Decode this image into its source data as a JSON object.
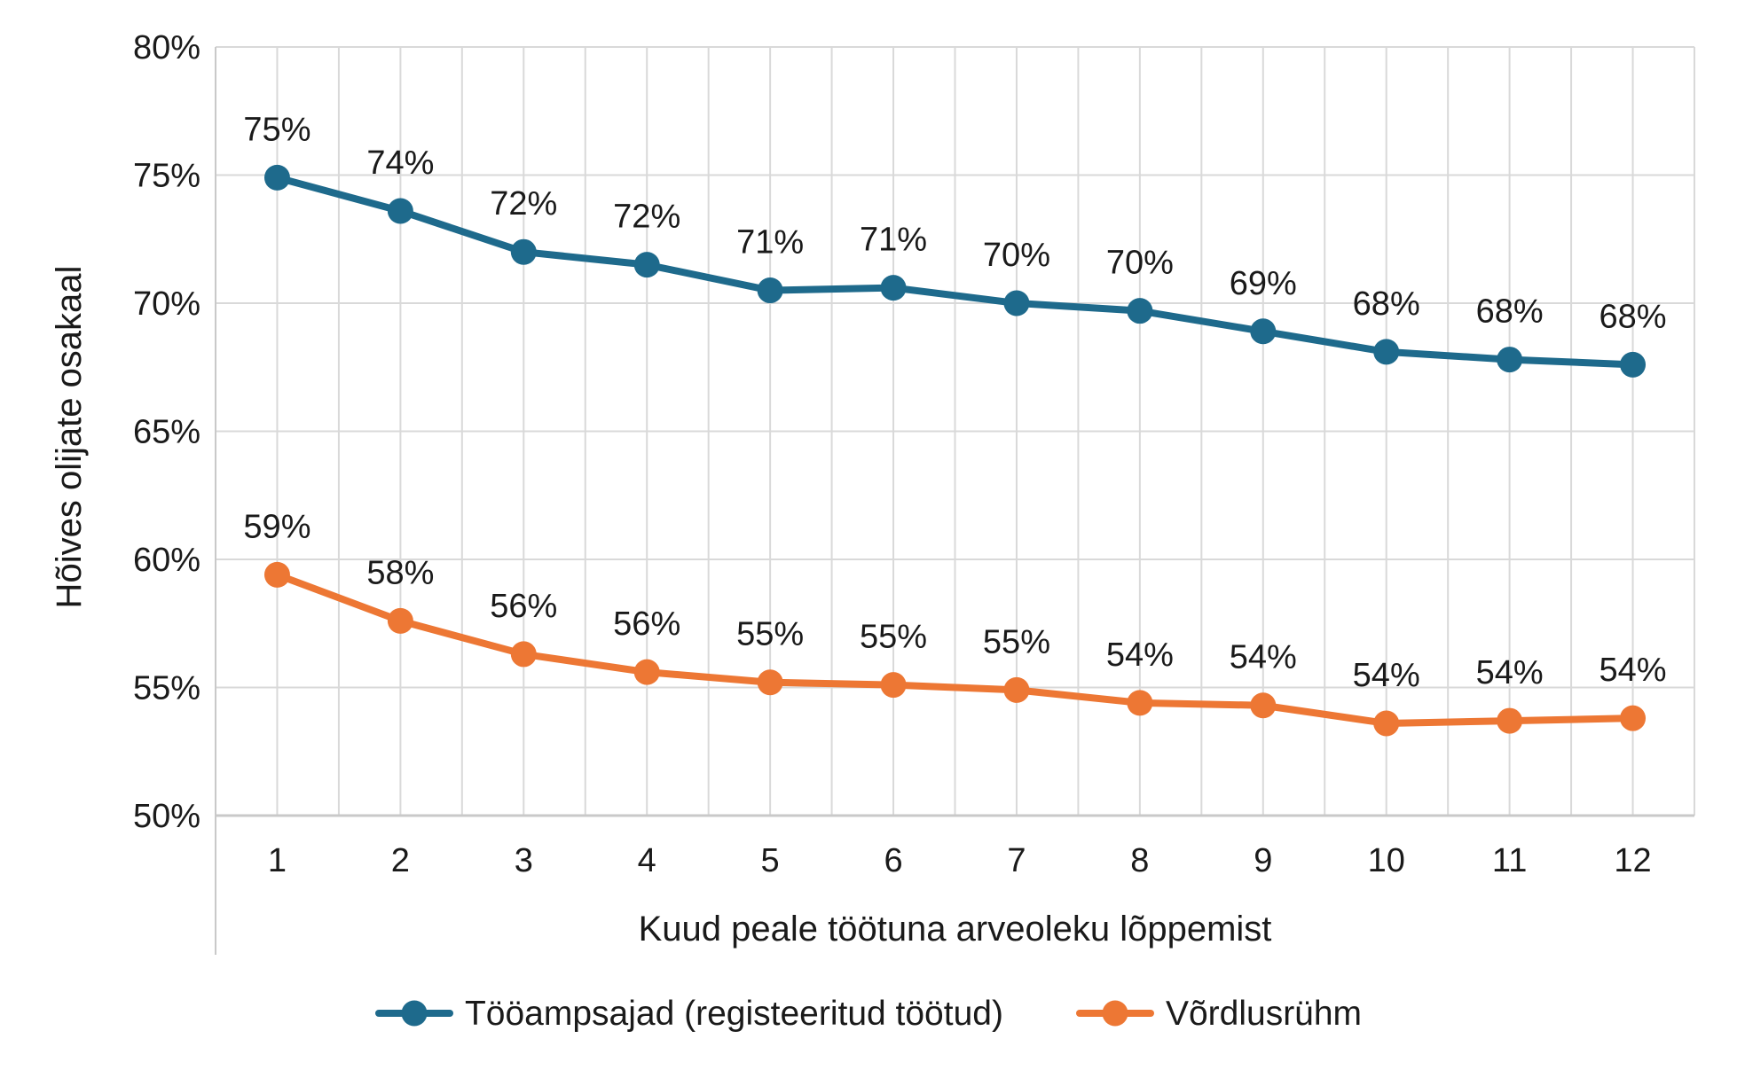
{
  "chart_data": {
    "type": "line",
    "title": "",
    "xlabel": "Kuud peale töötuna arveoleku lõppemist",
    "ylabel": "Hõives olijate osakaal",
    "x": [
      1,
      2,
      3,
      4,
      5,
      6,
      7,
      8,
      9,
      10,
      11,
      12
    ],
    "ylim": [
      50,
      80
    ],
    "ytick_step": 5,
    "yticks": [
      "80%",
      "75%",
      "70%",
      "65%",
      "60%",
      "55%",
      "50%"
    ],
    "grid": {
      "horizontal": "major 5% steps",
      "vertical": "half-category steps",
      "color": "#D9D9D9"
    },
    "legend_position": "bottom-center",
    "series": [
      {
        "name": "Tööampsajad (registeeritud töötud)",
        "color": "#1E6A8C",
        "values": [
          74.9,
          73.6,
          72.0,
          71.5,
          70.5,
          70.6,
          70.0,
          69.7,
          68.9,
          68.1,
          67.8,
          67.6
        ],
        "point_labels": [
          "75%",
          "74%",
          "72%",
          "72%",
          "71%",
          "71%",
          "70%",
          "70%",
          "69%",
          "68%",
          "68%",
          "68%"
        ]
      },
      {
        "name": "Võrdlusrühm",
        "color": "#ED7734",
        "values": [
          59.4,
          57.6,
          56.3,
          55.6,
          55.2,
          55.1,
          54.9,
          54.4,
          54.3,
          53.6,
          53.7,
          53.8
        ],
        "point_labels": [
          "59%",
          "58%",
          "56%",
          "56%",
          "55%",
          "55%",
          "55%",
          "54%",
          "54%",
          "54%",
          "54%",
          "54%"
        ]
      }
    ],
    "colors": {
      "gridline": "#D9D9D9",
      "axis_line": "#C9C9C9",
      "text": "#1a1a1a"
    }
  }
}
